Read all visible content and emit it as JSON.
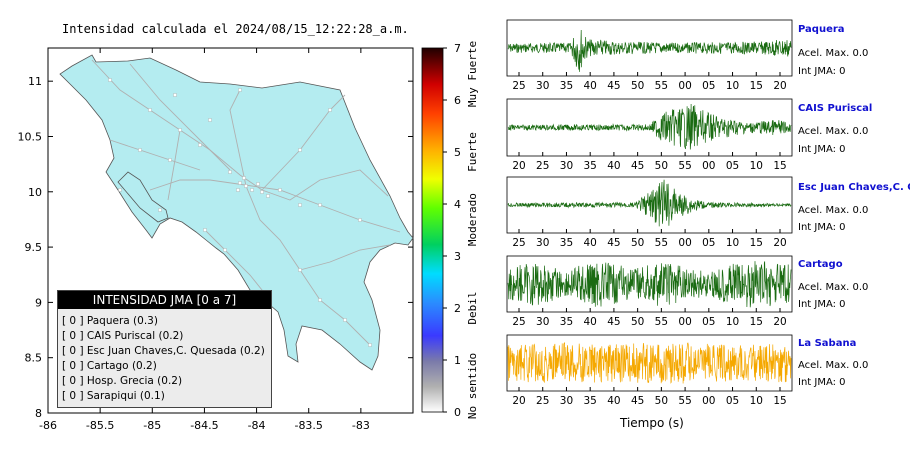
{
  "map": {
    "title": "Intensidad calculada el 2024/08/15_12:22:28_a.m.",
    "x_ticks": [
      "-86",
      "-85.5",
      "-85",
      "-84.5",
      "-84",
      "-83.5",
      "-83"
    ],
    "y_ticks": [
      "11",
      "10.5",
      "10",
      "9.5",
      "9",
      "8.5",
      "8"
    ],
    "x_range": [
      -86,
      -82.5
    ],
    "y_range": [
      8,
      11.3
    ],
    "land_color": "#b4ecf0"
  },
  "colorbar": {
    "ticks": [
      "0",
      "1",
      "2",
      "3",
      "4",
      "5",
      "6",
      "7"
    ],
    "labels": [
      "No sentido",
      "Debil",
      "Moderado",
      "Fuerte",
      "Muy Fuerte"
    ]
  },
  "legend": {
    "title": "INTENSIDAD JMA [0 a 7]",
    "rows": [
      "[ 0 ]  Paquera (0.3)",
      "[ 0 ]  CAIS Puriscal (0.2)",
      "[ 0 ]  Esc Juan Chaves,C. Quesada (0.2)",
      "[ 0 ]  Cartago (0.2)",
      "[ 0 ]  Hosp. Grecia (0.2)",
      "[ 0 ]  Sarapiqui (0.1)"
    ]
  },
  "stations": [
    {
      "name": "Paquera",
      "acc": "Acel. Max. 0.0",
      "jma": "Int JMA: 0",
      "color": "#1a6b12",
      "ticks": [
        "25",
        "30",
        "35",
        "40",
        "45",
        "50",
        "55",
        "00",
        "05",
        "10",
        "15",
        "20"
      ]
    },
    {
      "name": "CAIS Puriscal",
      "acc": "Acel. Max. 0.0",
      "jma": "Int JMA: 0",
      "color": "#1a6b12",
      "ticks": [
        "20",
        "25",
        "30",
        "35",
        "40",
        "45",
        "50",
        "55",
        "00",
        "05",
        "10",
        "15"
      ]
    },
    {
      "name": "Esc Juan Chaves,C. Qu",
      "acc": "Acel. Max. 0.0",
      "jma": "Int JMA: 0",
      "color": "#1a6b12",
      "ticks": [
        "25",
        "30",
        "35",
        "40",
        "45",
        "50",
        "55",
        "00",
        "05",
        "10",
        "15",
        "20"
      ]
    },
    {
      "name": "Cartago",
      "acc": "Acel. Max. 0.0",
      "jma": "Int JMA: 0",
      "color": "#1a6b12",
      "ticks": [
        "25",
        "30",
        "35",
        "40",
        "45",
        "50",
        "55",
        "00",
        "05",
        "10",
        "15",
        "20"
      ]
    },
    {
      "name": "La Sabana",
      "acc": "Acel. Max. 0.0",
      "jma": "Int JMA: 0",
      "color": "#f5a800",
      "ticks": [
        "20",
        "25",
        "30",
        "35",
        "40",
        "45",
        "50",
        "55",
        "00",
        "05",
        "10",
        "15"
      ]
    }
  ],
  "time_axis_label": "Tiempo (s)"
}
